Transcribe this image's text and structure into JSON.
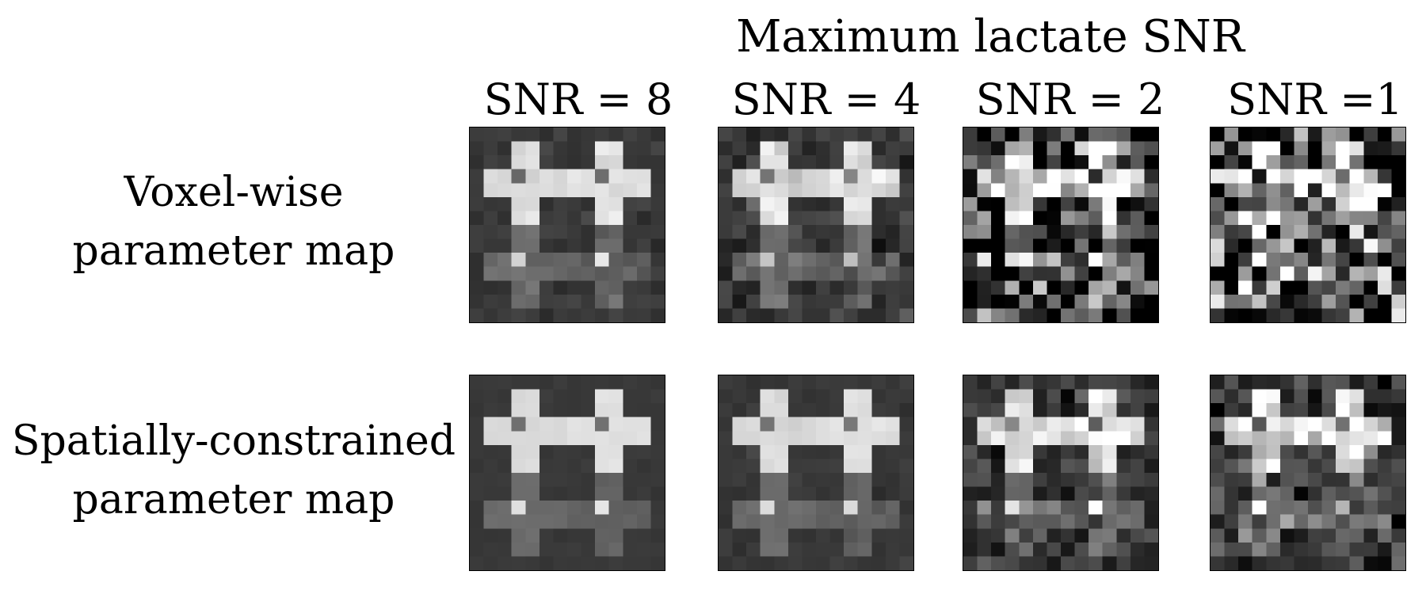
{
  "figure": {
    "title": "Maximum lactate SNR",
    "columns": [
      {
        "label": "SNR = 8",
        "noise": 0.06
      },
      {
        "label": "SNR = 4",
        "noise": 0.12
      },
      {
        "label": "SNR = 2",
        "noise": 0.55
      },
      {
        "label": "SNR =1",
        "noise": 0.9
      }
    ],
    "rows": [
      {
        "line1": "Voxel-wise",
        "line2": "parameter map",
        "smoothing": 1.0
      },
      {
        "line1": "Spatially-constrained",
        "line2": "parameter map",
        "smoothing": 0.3
      }
    ],
    "grid_size": 14,
    "background_gray": 0.22,
    "phantom_intensity": {
      "top_left": 0.85,
      "top_right": 0.88,
      "bottom_left": 0.42,
      "bottom_right": 0.38
    }
  }
}
